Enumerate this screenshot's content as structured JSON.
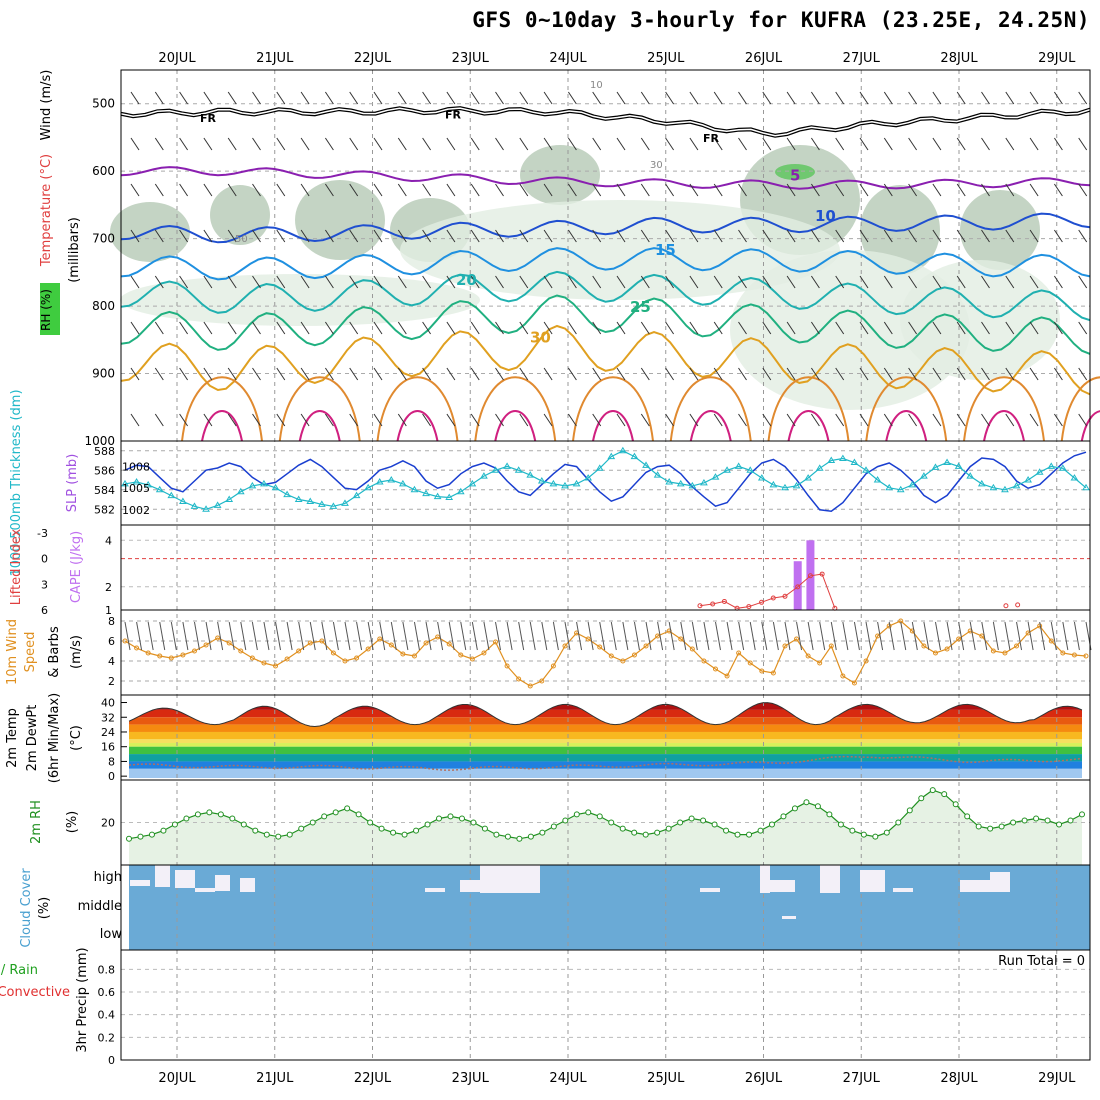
{
  "title": "GFS 0~10day 3-hourly for KUFRA (23.25E, 24.25N)",
  "days": [
    "20JUL",
    "21JUL",
    "22JUL",
    "23JUL",
    "24JUL",
    "25JUL",
    "26JUL",
    "27JUL",
    "28JUL",
    "29JUL"
  ],
  "chart_data": [
    {
      "panel": "upper-air",
      "type": "line",
      "ylabel_parts": [
        "Wind (m/s)",
        "Temperature (°C)",
        "RH (%)",
        "(millibars)"
      ],
      "pressure_ticks": [
        500,
        600,
        700,
        800,
        900,
        1000
      ],
      "ylim": [
        450,
        1000
      ],
      "freezing_label": "FR",
      "isotherm_labels": [
        "5",
        "10",
        "15",
        "20",
        "25",
        "30"
      ],
      "rh_contour_labels": [
        "10",
        "30",
        "50"
      ],
      "isotherm_levels_hpa": [
        {
          "label": "5",
          "color": "#8a1fb0",
          "values": [
            600,
            600,
            605,
            610,
            615,
            618,
            620,
            620,
            618,
            615
          ]
        },
        {
          "label": "10",
          "color": "#1f4fd0",
          "values": [
            690,
            695,
            692,
            688,
            685,
            680,
            680,
            678,
            676,
            672
          ]
        },
        {
          "label": "15",
          "color": "#1f90e0",
          "values": [
            740,
            745,
            742,
            735,
            730,
            730,
            732,
            735,
            740,
            740
          ]
        },
        {
          "label": "20",
          "color": "#20b0b0",
          "values": [
            780,
            790,
            785,
            775,
            770,
            775,
            780,
            790,
            795,
            800
          ]
        },
        {
          "label": "25",
          "color": "#20b080",
          "values": [
            830,
            840,
            830,
            820,
            810,
            815,
            825,
            835,
            840,
            845
          ]
        },
        {
          "label": "30",
          "color": "#e0a020",
          "values": [
            880,
            895,
            880,
            870,
            860,
            870,
            880,
            890,
            895,
            900
          ]
        }
      ],
      "freezing_level_hpa": [
        515,
        512,
        512,
        510,
        512,
        525,
        545,
        530,
        520,
        510
      ]
    },
    {
      "panel": "thickness-slp",
      "type": "line",
      "ylabel_left": "1000-500mb Thickness (dm)",
      "ylabel_right": "SLP (mb)",
      "thickness_ticks": [
        582,
        584,
        586,
        588
      ],
      "slp_ticks": [
        1002,
        1005,
        1008
      ],
      "series": [
        {
          "name": "SLP (mb)",
          "color": "#1a3fd0",
          "values": [
            1007.5,
            1008.2,
            1008.0,
            1006.5,
            1005.0,
            1004.5,
            1006.0,
            1007.5,
            1007.8,
            1008.5,
            1008.0,
            1006.5,
            1005.5,
            1005.8,
            1007.0,
            1008.2,
            1009.0,
            1008.0,
            1006.5,
            1005.0,
            1004.8,
            1006.0,
            1007.5,
            1008.0,
            1008.8,
            1008.0,
            1006.0,
            1005.0,
            1005.5,
            1007.0,
            1008.0,
            1008.5,
            1007.8,
            1006.0,
            1004.5,
            1004.0,
            1005.5,
            1007.0,
            1008.3,
            1008.0,
            1006.2,
            1004.5,
            1003.2,
            1003.8,
            1005.5,
            1007.2,
            1008.0,
            1008.2,
            1007.0,
            1005.2,
            1003.8,
            1002.5,
            1003.0,
            1005.0,
            1007.0,
            1008.5,
            1009.0,
            1008.0,
            1006.2,
            1004.0,
            1002.0,
            1001.8,
            1003.0,
            1005.0,
            1007.0,
            1008.0,
            1008.5,
            1007.5,
            1006.0,
            1004.0,
            1003.0,
            1004.0,
            1006.0,
            1008.0,
            1009.2,
            1009.0,
            1008.0,
            1006.0,
            1005.0,
            1005.5,
            1007.0,
            1008.5,
            1009.5,
            1010.0
          ]
        },
        {
          "name": "1000-500mb Thickness (dm)",
          "color": "#20b8c8",
          "values": [
            584.6,
            584.8,
            584.5,
            584.0,
            583.4,
            582.8,
            582.3,
            582.0,
            582.4,
            583.0,
            583.8,
            584.4,
            584.6,
            584.2,
            583.5,
            583.0,
            582.8,
            582.5,
            582.3,
            582.6,
            583.4,
            584.2,
            584.8,
            585.0,
            584.6,
            584.0,
            583.6,
            583.3,
            583.2,
            583.8,
            584.6,
            585.4,
            586.0,
            586.4,
            586.0,
            585.5,
            584.9,
            584.6,
            584.4,
            584.6,
            585.2,
            586.2,
            587.4,
            588.0,
            587.4,
            586.5,
            585.5,
            584.8,
            584.6,
            584.4,
            584.7,
            585.3,
            586.0,
            586.4,
            586.0,
            585.2,
            584.5,
            584.2,
            584.4,
            585.2,
            586.2,
            587.0,
            587.2,
            586.8,
            586.0,
            585.0,
            584.2,
            584.0,
            584.5,
            585.4,
            586.3,
            586.8,
            586.4,
            585.4,
            584.6,
            584.2,
            584.0,
            584.4,
            585.0,
            585.8,
            586.4,
            586.2,
            585.2,
            584.2
          ]
        }
      ]
    },
    {
      "panel": "stability",
      "type": "bar",
      "ylabel_left": "Lifted Index",
      "ylabel_right": "CAPE (J/kg)",
      "li_ticks": [
        "-3",
        "0",
        "3",
        "6"
      ],
      "cape_ticks": [
        "1",
        "2",
        "4"
      ],
      "cape_bars": [
        {
          "x": 6.35,
          "value": 3.1
        },
        {
          "x": 6.48,
          "value": 4.0
        }
      ],
      "lifted_index": [
        {
          "x": 5.35,
          "value": 5.5
        },
        {
          "x": 5.48,
          "value": 5.3
        },
        {
          "x": 5.6,
          "value": 5.0
        },
        {
          "x": 5.73,
          "value": 5.8
        },
        {
          "x": 5.85,
          "value": 5.6
        },
        {
          "x": 5.98,
          "value": 5.1
        },
        {
          "x": 6.1,
          "value": 4.6
        },
        {
          "x": 6.22,
          "value": 4.4
        },
        {
          "x": 6.35,
          "value": 3.3
        },
        {
          "x": 6.48,
          "value": 2.0
        },
        {
          "x": 6.6,
          "value": 1.8
        },
        {
          "x": 6.73,
          "value": 5.8
        },
        {
          "x": 8.48,
          "value": 5.5
        },
        {
          "x": 8.6,
          "value": 5.4
        }
      ]
    },
    {
      "panel": "10m-wind",
      "type": "line",
      "ylabel_parts": [
        "10m Wind",
        "Speed",
        "& Barbs",
        "(m/s)"
      ],
      "ticks": [
        2,
        4,
        6,
        8
      ],
      "series": [
        {
          "name": "10m Wind Speed (m/s)",
          "color": "#e09020",
          "values": [
            6.0,
            5.3,
            4.8,
            4.5,
            4.3,
            4.6,
            5.0,
            5.6,
            6.3,
            5.8,
            5.0,
            4.3,
            3.8,
            3.5,
            4.2,
            5.0,
            5.8,
            6.0,
            4.8,
            4.0,
            4.3,
            5.2,
            6.2,
            5.6,
            4.7,
            4.5,
            5.8,
            6.4,
            5.7,
            4.6,
            4.2,
            4.8,
            5.9,
            3.5,
            2.2,
            1.5,
            2.0,
            3.5,
            5.5,
            6.8,
            6.2,
            5.4,
            4.5,
            4.0,
            4.6,
            5.5,
            6.5,
            7.0,
            6.2,
            5.2,
            4.0,
            3.2,
            2.5,
            4.8,
            3.8,
            3.0,
            2.8,
            5.5,
            6.2,
            4.5,
            3.8,
            5.5,
            2.5,
            1.8,
            4.0,
            6.5,
            7.5,
            8.0,
            7.0,
            5.5,
            4.8,
            5.2,
            6.2,
            7.0,
            6.5,
            5.0,
            4.8,
            5.5,
            6.8,
            7.5,
            6.0,
            4.8,
            4.6,
            4.5
          ]
        }
      ]
    },
    {
      "panel": "2m-temp",
      "type": "area",
      "ylabel_parts": [
        "2m Temp",
        "2m DewPt",
        "(6hr Min/Max)",
        "(°C)"
      ],
      "ticks": [
        0,
        8,
        16,
        24,
        32,
        40
      ],
      "temp_max_c": [
        37,
        38,
        38,
        39,
        39,
        39,
        40,
        39,
        39,
        38
      ],
      "temp_min_c": [
        28,
        27,
        28,
        28,
        28,
        28,
        28,
        29,
        29,
        28
      ],
      "dewpoint_c": [
        6,
        5,
        5,
        4,
        5,
        6,
        7,
        11,
        8,
        9
      ]
    },
    {
      "panel": "2m-rh",
      "type": "area",
      "ylabel_parts": [
        "2m RH",
        "(%)"
      ],
      "ticks": [
        20
      ],
      "series": [
        {
          "name": "2m RH (%)",
          "color": "#209020",
          "values": [
            12,
            13,
            14,
            16,
            19,
            22,
            24,
            25,
            24,
            22,
            19,
            16,
            14,
            13,
            14,
            17,
            20,
            23,
            25,
            27,
            24,
            20,
            17,
            15,
            14,
            16,
            19,
            22,
            23,
            22,
            20,
            17,
            14,
            13,
            12,
            13,
            15,
            18,
            21,
            24,
            25,
            23,
            20,
            17,
            15,
            14,
            15,
            17,
            20,
            22,
            21,
            19,
            16,
            14,
            14,
            16,
            19,
            23,
            27,
            30,
            28,
            24,
            19,
            16,
            14,
            13,
            15,
            20,
            26,
            32,
            36,
            34,
            29,
            23,
            18,
            17,
            18,
            20,
            21,
            22,
            21,
            19,
            21,
            24
          ]
        }
      ]
    },
    {
      "panel": "cloud-cover",
      "type": "area",
      "ylabel_parts": [
        "Cloud Cover",
        "(%)"
      ],
      "levels": [
        "high",
        "middle",
        "low"
      ]
    },
    {
      "panel": "precip",
      "type": "bar",
      "ylabel_parts": [
        "Total / Rain",
        "Convective",
        "3hr Precip (mm)"
      ],
      "ticks": [
        0,
        0.2,
        0.4,
        0.6,
        0.8
      ],
      "ylim": [
        0,
        0.9
      ],
      "values": [],
      "run_total_label": "Run Total = 0"
    }
  ]
}
